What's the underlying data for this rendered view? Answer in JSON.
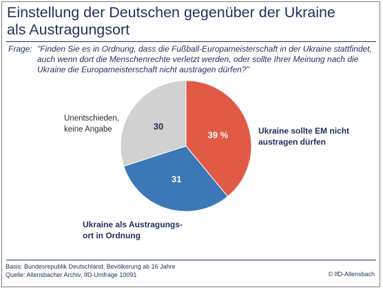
{
  "header": {
    "title_line1": "Einstellung der Deutschen gegenüber der Ukraine",
    "title_line2": "als Austragungsort"
  },
  "question": {
    "lead": "Frage:",
    "text": "\"Finden Sie es in Ordnung, dass die Fußball-Europameisterschaft in der Ukraine stattfindet, auch wenn dort die Menschenrechte verletzt werden, oder sollte Ihrer Meinung nach die Ukraine die Europameisterschaft nicht austragen dürfen?\""
  },
  "colors": {
    "slice_red": "#e05a45",
    "slice_blue": "#3c78b7",
    "slice_grey": "#d1d1d1",
    "text": "#1f2f5c"
  },
  "chart_data": {
    "type": "pie",
    "slices": [
      {
        "label_line1": "Ukraine sollte EM nicht",
        "label_line2": "austragen dürfen",
        "value": 39,
        "value_label": "39 %"
      },
      {
        "label_line1": "Ukraine als Austragungs-",
        "label_line2": "ort in Ordnung",
        "value": 31,
        "value_label": "31"
      },
      {
        "label_line1": "Unentschieden,",
        "label_line2": "keine Angabe",
        "value": 30,
        "value_label": "30"
      }
    ]
  },
  "footer": {
    "basis": "Basis: Bundesrepublik Deutschland, Bevölkerung ab 16 Jahre",
    "source": "Quelle: Allensbacher Archiv, IfD-Umfrage 10091",
    "credit": "© IfD-Allensbach"
  }
}
